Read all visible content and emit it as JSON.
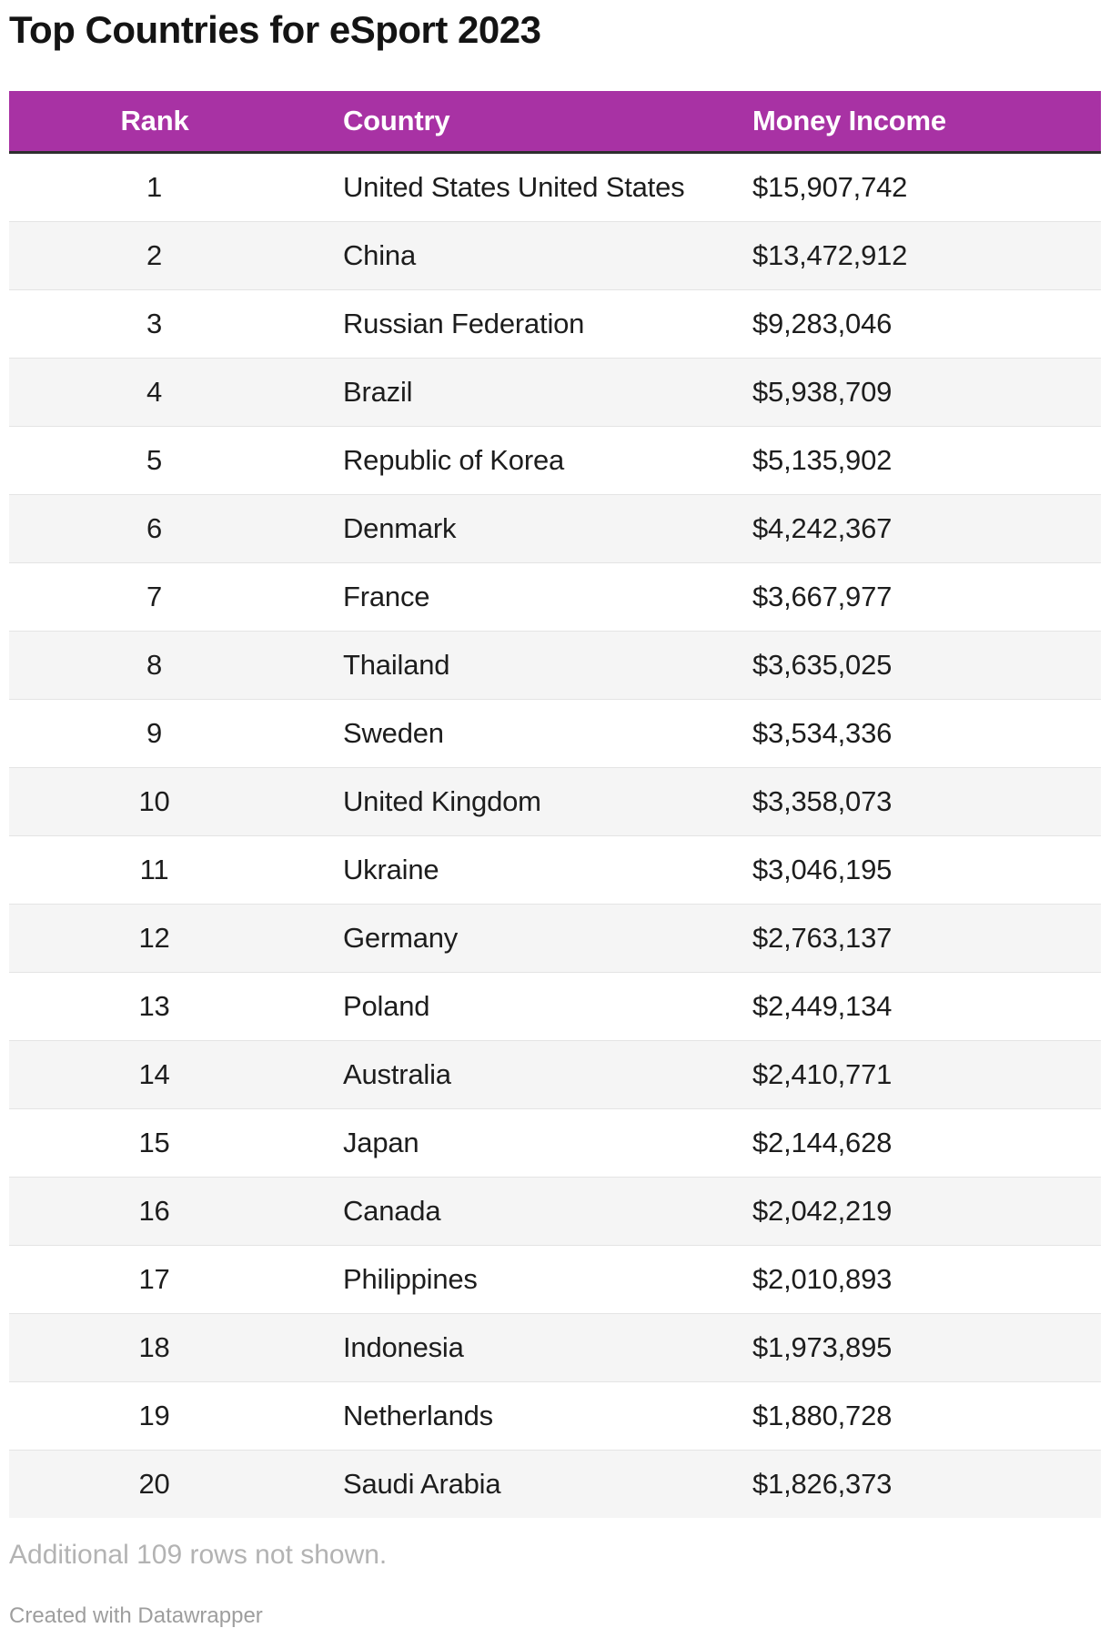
{
  "title": "Top Countries for eSport 2023",
  "footer": {
    "note": "Additional 109 rows not shown.",
    "attribution": "Created with Datawrapper"
  },
  "colors": {
    "header_bg": "#a832a4",
    "header_text": "#ffffff",
    "header_border": "#2e2e2e",
    "stripe": "#f5f5f5",
    "row_divider": "#e4e4e4",
    "footnote_text": "#b3b3b3",
    "attribution_text": "#9e9e9e",
    "title_text": "#141414"
  },
  "chart_data": {
    "type": "table",
    "title": "Top Countries for eSport 2023",
    "columns": [
      "Rank",
      "Country",
      "Money Income"
    ],
    "rows": [
      {
        "rank": "1",
        "country": "United States United States",
        "money_income": 15907742,
        "money_income_label": "$15,907,742"
      },
      {
        "rank": "2",
        "country": "China",
        "money_income": 13472912,
        "money_income_label": "$13,472,912"
      },
      {
        "rank": "3",
        "country": "Russian Federation",
        "money_income": 9283046,
        "money_income_label": "$9,283,046"
      },
      {
        "rank": "4",
        "country": "Brazil",
        "money_income": 5938709,
        "money_income_label": "$5,938,709"
      },
      {
        "rank": "5",
        "country": "Republic of Korea",
        "money_income": 5135902,
        "money_income_label": "$5,135,902"
      },
      {
        "rank": "6",
        "country": "Denmark",
        "money_income": 4242367,
        "money_income_label": "$4,242,367"
      },
      {
        "rank": "7",
        "country": "France",
        "money_income": 3667977,
        "money_income_label": "$3,667,977"
      },
      {
        "rank": "8",
        "country": "Thailand",
        "money_income": 3635025,
        "money_income_label": "$3,635,025"
      },
      {
        "rank": "9",
        "country": "Sweden",
        "money_income": 3534336,
        "money_income_label": "$3,534,336"
      },
      {
        "rank": "10",
        "country": "United Kingdom",
        "money_income": 3358073,
        "money_income_label": "$3,358,073"
      },
      {
        "rank": "11",
        "country": "Ukraine",
        "money_income": 3046195,
        "money_income_label": "$3,046,195"
      },
      {
        "rank": "12",
        "country": "Germany",
        "money_income": 2763137,
        "money_income_label": "$2,763,137"
      },
      {
        "rank": "13",
        "country": "Poland",
        "money_income": 2449134,
        "money_income_label": "$2,449,134"
      },
      {
        "rank": "14",
        "country": "Australia",
        "money_income": 2410771,
        "money_income_label": "$2,410,771"
      },
      {
        "rank": "15",
        "country": "Japan",
        "money_income": 2144628,
        "money_income_label": "$2,144,628"
      },
      {
        "rank": "16",
        "country": "Canada",
        "money_income": 2042219,
        "money_income_label": "$2,042,219"
      },
      {
        "rank": "17",
        "country": "Philippines",
        "money_income": 2010893,
        "money_income_label": "$2,010,893"
      },
      {
        "rank": "18",
        "country": "Indonesia",
        "money_income": 1973895,
        "money_income_label": "$1,973,895"
      },
      {
        "rank": "19",
        "country": "Netherlands",
        "money_income": 1880728,
        "money_income_label": "$1,880,728"
      },
      {
        "rank": "20",
        "country": "Saudi Arabia",
        "money_income": 1826373,
        "money_income_label": "$1,826,373"
      }
    ]
  }
}
